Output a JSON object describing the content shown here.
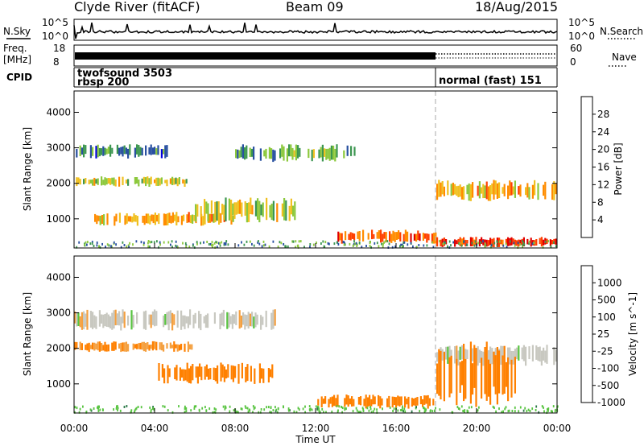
{
  "header": {
    "station": "Clyde River (fitACF)",
    "beam": "Beam 09",
    "date": "18/Aug/2015"
  },
  "strips": {
    "nsky_label": "N.Sky",
    "nsearch_label": "N.Search",
    "freq_label_1": "Freq.",
    "freq_label_2": "[MHz]",
    "nave_label": "Nave",
    "cpid_label": "CPID",
    "noise_ticks_left": [
      "10^5",
      "10^0"
    ],
    "noise_ticks_right": [
      "10^5",
      "10^0"
    ],
    "freq_ticks_left": [
      "18",
      "8"
    ],
    "nave_ticks_right": [
      "60",
      "0"
    ],
    "cpid_segments": [
      {
        "start": 0,
        "end": 18,
        "line1": "twofsound 3503",
        "line2": "rbsp 200"
      },
      {
        "start": 18,
        "end": 24,
        "line1": "normal (fast) 151",
        "line2": ""
      }
    ]
  },
  "axes": {
    "xlabel": "Time UT",
    "x_ticks": [
      "00:00",
      "04:00",
      "08:00",
      "12:00",
      "16:00",
      "20:00",
      "00:00"
    ],
    "x_tick_hours": [
      0,
      4,
      8,
      12,
      16,
      20,
      24
    ],
    "ylabel": "Slant Range [km]",
    "y_ticks": [
      1000,
      2000,
      3000,
      4000
    ],
    "ylim": [
      180,
      4600
    ],
    "xlim": [
      0,
      24
    ]
  },
  "colorbars": {
    "power": {
      "label": "Power [dB]",
      "ticks": [
        "28",
        "24",
        "20",
        "16",
        "12",
        "8",
        "4"
      ],
      "colors": [
        "#e00000",
        "#ff4000",
        "#ff8c00",
        "#f0c020",
        "#8cc83c",
        "#3c9650",
        "#2850a0",
        "#0000e0"
      ]
    },
    "velocity": {
      "label": "Velocity [m s^-1]",
      "ticks": [
        "1000",
        "500",
        "100",
        "25",
        "-25",
        "-100",
        "-500",
        "-1000"
      ],
      "colors": [
        "#2840b8",
        "#2c7a48",
        "#58c440",
        "#c8c8c0",
        "#c8c8c0",
        "#f4a040",
        "#ff8000",
        "#e01010"
      ]
    }
  },
  "chart_data": [
    {
      "type": "heatmap",
      "name": "Power",
      "x_unit": "hours UT",
      "y_unit": "km",
      "regions": [
        {
          "x": [
            0.0,
            6.0
          ],
          "y": [
            1900,
            2200
          ],
          "level": 16
        },
        {
          "x": [
            0.0,
            5.0
          ],
          "y": [
            2700,
            3100
          ],
          "level": 8
        },
        {
          "x": [
            1.0,
            8.0
          ],
          "y": [
            800,
            1200
          ],
          "level": 20
        },
        {
          "x": [
            6.0,
            11.0
          ],
          "y": [
            900,
            1600
          ],
          "level": 16
        },
        {
          "x": [
            8.0,
            14.0
          ],
          "y": [
            2600,
            3100
          ],
          "level": 12
        },
        {
          "x": [
            13.0,
            18.0
          ],
          "y": [
            300,
            700
          ],
          "level": 24
        },
        {
          "x": [
            18.0,
            24.0
          ],
          "y": [
            1500,
            2100
          ],
          "level": 20
        },
        {
          "x": [
            18.0,
            24.0
          ],
          "y": [
            200,
            500
          ],
          "level": 28
        }
      ]
    },
    {
      "type": "heatmap",
      "name": "Velocity",
      "x_unit": "hours UT",
      "y_unit": "km",
      "regions": [
        {
          "x": [
            0.0,
            6.0
          ],
          "y": [
            1900,
            2200
          ],
          "level": -100
        },
        {
          "x": [
            0.0,
            10.0
          ],
          "y": [
            2500,
            3100
          ],
          "level": 0
        },
        {
          "x": [
            4.0,
            10.0
          ],
          "y": [
            1000,
            1600
          ],
          "level": -500
        },
        {
          "x": [
            12.0,
            18.0
          ],
          "y": [
            300,
            700
          ],
          "level": -500
        },
        {
          "x": [
            18.0,
            24.0
          ],
          "y": [
            1500,
            2100
          ],
          "level": 0
        },
        {
          "x": [
            18.0,
            22.0
          ],
          "y": [
            300,
            2200
          ],
          "level": -500
        }
      ]
    }
  ]
}
